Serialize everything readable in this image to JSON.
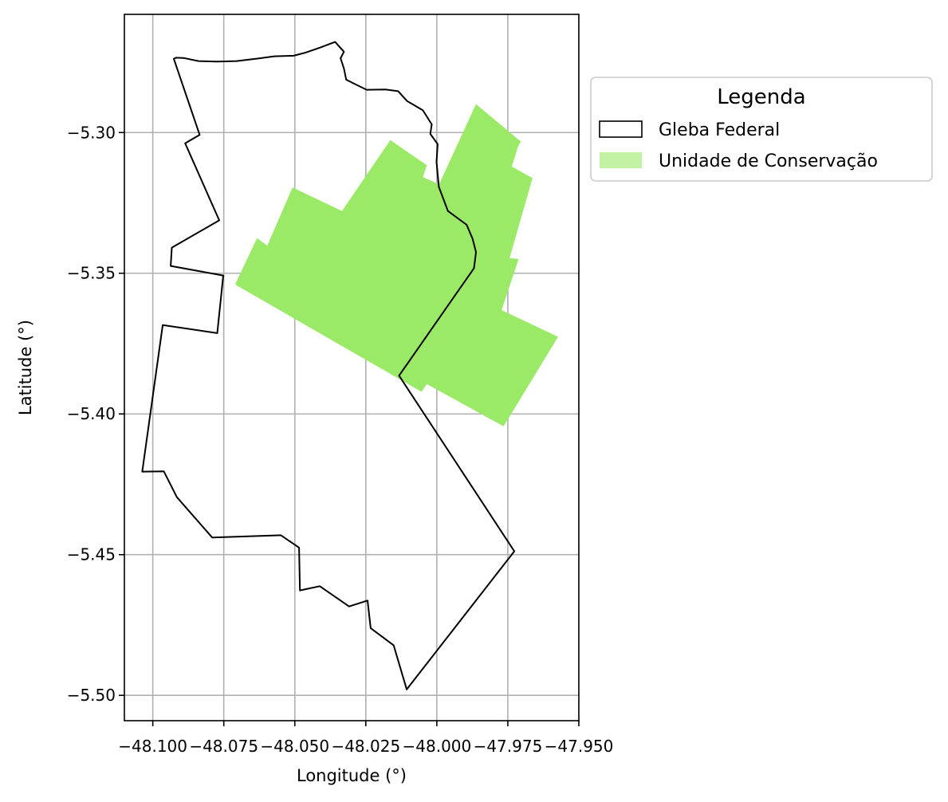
{
  "chart_data": {
    "type": "map",
    "xlabel": "Longitude (°)",
    "ylabel": "Latitude (°)",
    "xlim": [
      -48.11,
      -47.95
    ],
    "ylim": [
      -5.509,
      -5.258
    ],
    "x_ticks": [
      "−48.100",
      "−48.075",
      "−48.050",
      "−48.025",
      "−48.000",
      "−47.975",
      "−47.950"
    ],
    "x_tick_values": [
      -48.1,
      -48.075,
      -48.05,
      -48.025,
      -48.0,
      -47.975,
      -47.95
    ],
    "y_ticks": [
      "−5.30",
      "−5.35",
      "−5.40",
      "−5.45",
      "−5.50"
    ],
    "y_tick_values": [
      -5.3,
      -5.35,
      -5.4,
      -5.45,
      -5.5
    ],
    "grid": true,
    "legend": {
      "title": "Legenda",
      "placement": "outside-upper-right",
      "entries": [
        {
          "label": "Gleba Federal",
          "style": "outline",
          "color": "#000000"
        },
        {
          "label": "Unidade de Conservação",
          "style": "fill",
          "color": "#9aea68"
        }
      ]
    },
    "series": [
      {
        "name": "Unidade de Conservação",
        "geometry": "polygon",
        "fill": "#9aea68",
        "coordinates": [
          [
            -48.071,
            -5.354
          ],
          [
            -48.0633,
            -5.3375
          ],
          [
            -48.0597,
            -5.3402
          ],
          [
            -48.0508,
            -5.3195
          ],
          [
            -48.0334,
            -5.3279
          ],
          [
            -48.0164,
            -5.3027
          ],
          [
            -48.0035,
            -5.3116
          ],
          [
            -48.0049,
            -5.3158
          ],
          [
            -47.9992,
            -5.3184
          ],
          [
            -47.9862,
            -5.2899
          ],
          [
            -47.9704,
            -5.3032
          ],
          [
            -47.9713,
            -5.3047
          ],
          [
            -47.9736,
            -5.3121
          ],
          [
            -47.9663,
            -5.3162
          ],
          [
            -47.9744,
            -5.3446
          ],
          [
            -47.9712,
            -5.3449
          ],
          [
            -47.9772,
            -5.3631
          ],
          [
            -47.9573,
            -5.3726
          ],
          [
            -47.9765,
            -5.4044
          ],
          [
            -48.0035,
            -5.3894
          ],
          [
            -48.0054,
            -5.3921
          ]
        ]
      },
      {
        "name": "Gleba Federal",
        "geometry": "polygon",
        "stroke": "#000000",
        "coordinates": [
          [
            -48.0918,
            -5.2734
          ],
          [
            -48.0892,
            -5.2735
          ],
          [
            -48.0839,
            -5.2746
          ],
          [
            -48.0775,
            -5.2748
          ],
          [
            -48.0705,
            -5.2746
          ],
          [
            -48.0629,
            -5.2737
          ],
          [
            -48.0572,
            -5.2729
          ],
          [
            -48.0504,
            -5.2727
          ],
          [
            -48.0466,
            -5.2717
          ],
          [
            -48.0411,
            -5.2698
          ],
          [
            -48.0358,
            -5.2678
          ],
          [
            -48.0327,
            -5.2713
          ],
          [
            -48.0339,
            -5.2736
          ],
          [
            -48.0327,
            -5.2773
          ],
          [
            -48.0319,
            -5.2812
          ],
          [
            -48.0286,
            -5.2829
          ],
          [
            -48.0247,
            -5.2848
          ],
          [
            -48.0181,
            -5.2847
          ],
          [
            -48.0136,
            -5.2853
          ],
          [
            -48.0105,
            -5.2888
          ],
          [
            -48.0049,
            -5.2921
          ],
          [
            -48.0018,
            -5.2971
          ],
          [
            -48.0023,
            -5.3005
          ],
          [
            -47.9997,
            -5.3041
          ],
          [
            -48.0001,
            -5.3104
          ],
          [
            -47.9993,
            -5.3193
          ],
          [
            -47.9961,
            -5.3279
          ],
          [
            -47.9895,
            -5.3328
          ],
          [
            -47.9874,
            -5.3378
          ],
          [
            -47.9862,
            -5.3425
          ],
          [
            -47.9869,
            -5.3482
          ],
          [
            -48.0133,
            -5.3864
          ],
          [
            -47.9727,
            -5.4488
          ],
          [
            -48.0106,
            -5.4979
          ],
          [
            -48.0152,
            -5.4822
          ],
          [
            -48.0233,
            -5.4761
          ],
          [
            -48.0244,
            -5.4663
          ],
          [
            -48.0309,
            -5.4684
          ],
          [
            -48.0412,
            -5.4612
          ],
          [
            -48.0482,
            -5.4627
          ],
          [
            -48.0485,
            -5.4475
          ],
          [
            -48.0549,
            -5.4431
          ],
          [
            -48.0791,
            -5.4439
          ],
          [
            -48.0915,
            -5.4296
          ],
          [
            -48.0961,
            -5.4204
          ],
          [
            -48.1037,
            -5.4205
          ],
          [
            -48.0965,
            -5.3684
          ],
          [
            -48.0773,
            -5.3713
          ],
          [
            -48.0752,
            -5.3508
          ],
          [
            -48.0937,
            -5.3474
          ],
          [
            -48.0933,
            -5.3409
          ],
          [
            -48.0766,
            -5.3312
          ],
          [
            -48.0886,
            -5.3038
          ],
          [
            -48.0835,
            -5.3008
          ],
          [
            -48.0926,
            -5.2738
          ],
          [
            -48.0918,
            -5.2734
          ]
        ]
      }
    ]
  }
}
